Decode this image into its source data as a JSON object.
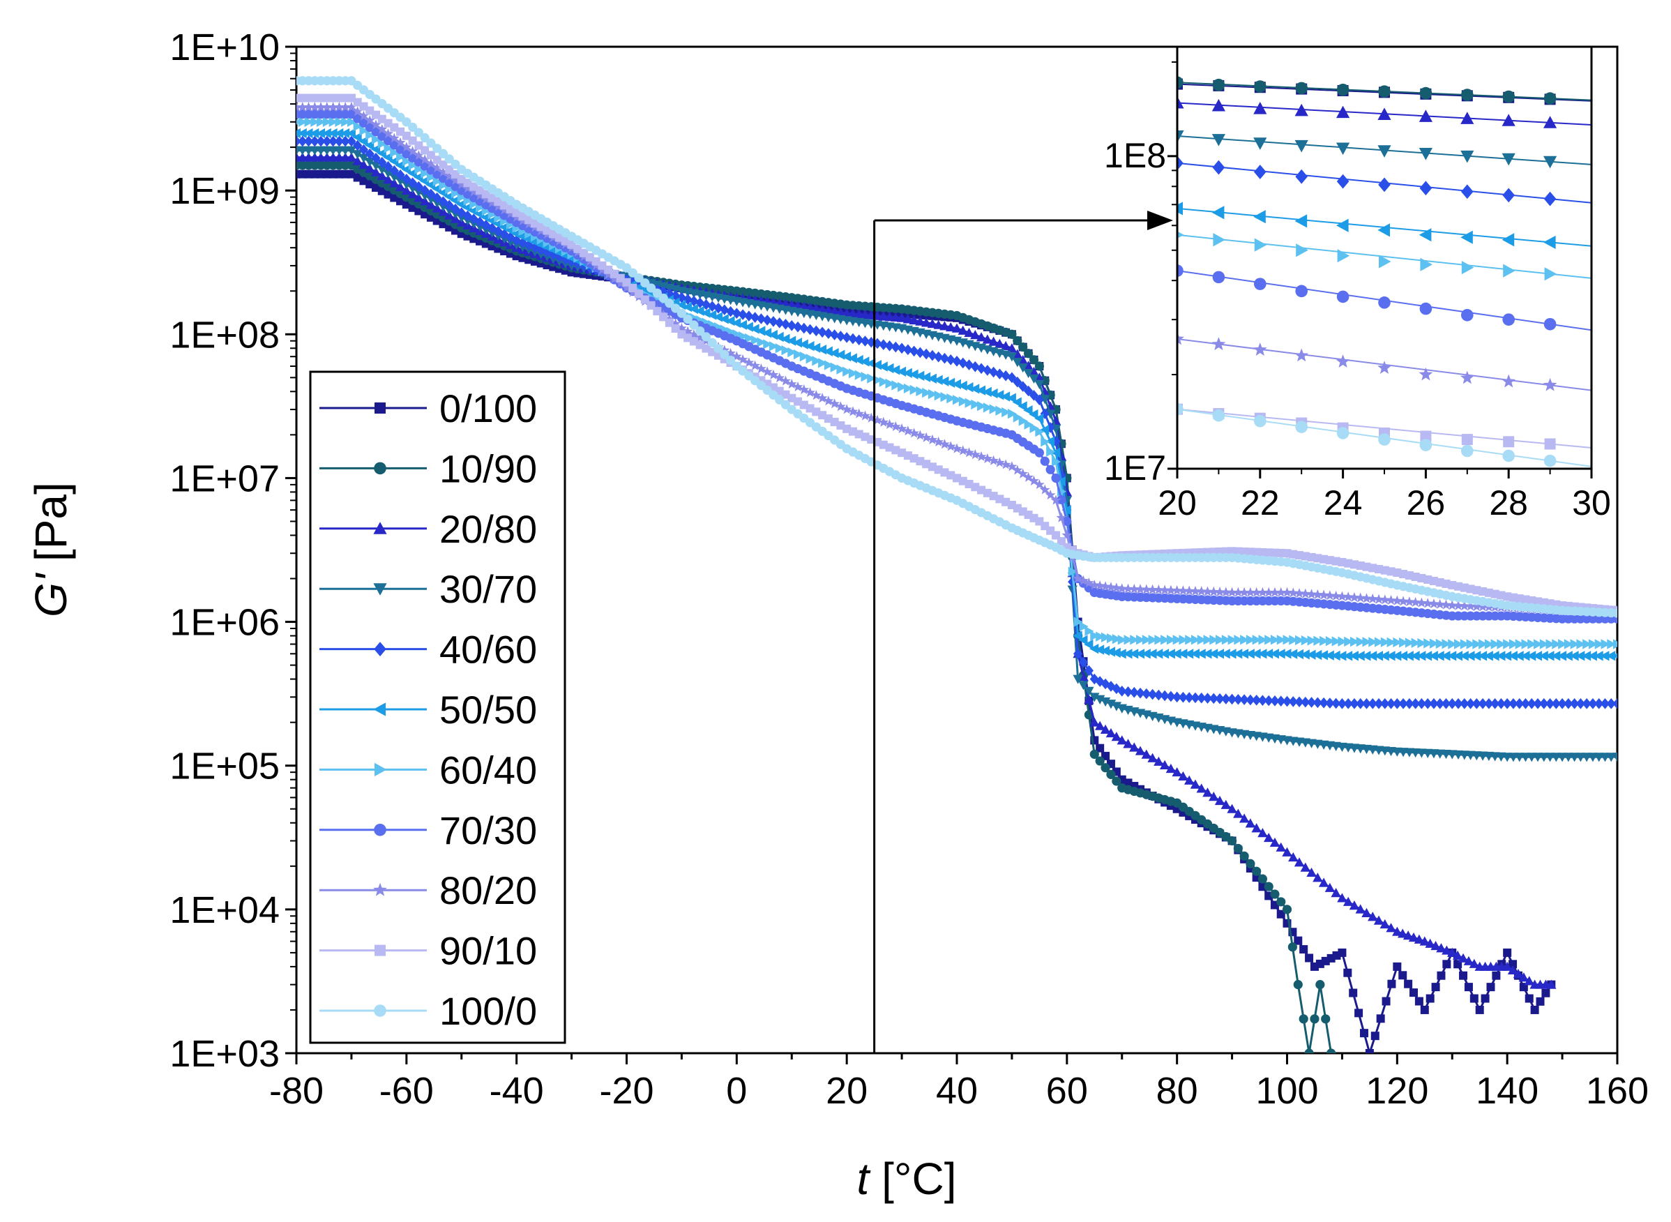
{
  "chart_data": {
    "type": "scatter",
    "title": "",
    "xlabel": {
      "italic": "t",
      "unit": "[°C]"
    },
    "ylabel": {
      "italic": "G'",
      "unit": "[Pa]"
    },
    "xlim": [
      -80,
      160
    ],
    "ylim_log10": [
      3,
      10
    ],
    "xticks": [
      "-80",
      "-60",
      "-40",
      "-20",
      "0",
      "20",
      "40",
      "60",
      "80",
      "100",
      "120",
      "140",
      "160"
    ],
    "yticks": [
      "1E+03",
      "1E+04",
      "1E+05",
      "1E+06",
      "1E+07",
      "1E+08",
      "1E+09",
      "1E+10"
    ],
    "legend_position": "left",
    "annotation": {
      "type": "arrow",
      "from_x": 25,
      "to": "inset",
      "text": ""
    },
    "series": [
      {
        "name": "0/100",
        "color": "#1a1a8c",
        "marker": "square",
        "x": [
          -80,
          -70,
          -60,
          -50,
          -40,
          -30,
          -20,
          -10,
          0,
          10,
          20,
          30,
          40,
          50,
          55,
          58,
          60,
          62,
          65,
          70,
          80,
          90,
          100,
          105,
          110,
          115,
          120,
          125,
          130,
          135,
          140,
          145,
          148
        ],
        "y": [
          1300000000.0,
          1300000000.0,
          800000000.0,
          500000000.0,
          350000000.0,
          270000000.0,
          240000000.0,
          210000000.0,
          190000000.0,
          170000000.0,
          150000000.0,
          140000000.0,
          130000000.0,
          100000000.0,
          60000000.0,
          30000000.0,
          10000000.0,
          1000000.0,
          150000.0,
          80000.0,
          50000.0,
          30000.0,
          8000.0,
          4000.0,
          5000.0,
          1000.0,
          4000.0,
          2000.0,
          5000.0,
          2000.0,
          5000.0,
          2000.0,
          3000.0
        ]
      },
      {
        "name": "10/90",
        "color": "#145c6e",
        "marker": "circle",
        "x": [
          -80,
          -70,
          -60,
          -50,
          -40,
          -30,
          -20,
          -10,
          0,
          10,
          20,
          30,
          40,
          50,
          55,
          58,
          60,
          62,
          65,
          70,
          80,
          90,
          100,
          102,
          104,
          106,
          108
        ],
        "y": [
          1500000000.0,
          1500000000.0,
          900000000.0,
          550000000.0,
          380000000.0,
          290000000.0,
          250000000.0,
          220000000.0,
          200000000.0,
          180000000.0,
          160000000.0,
          150000000.0,
          135000000.0,
          100000000.0,
          60000000.0,
          30000000.0,
          10000000.0,
          800000.0,
          120000.0,
          70000.0,
          55000.0,
          30000.0,
          10000.0,
          3000.0,
          1000.0,
          3000.0,
          1000.0
        ]
      },
      {
        "name": "20/80",
        "color": "#2828c8",
        "marker": "triangle-up",
        "x": [
          -80,
          -70,
          -60,
          -50,
          -40,
          -30,
          -20,
          -10,
          0,
          10,
          20,
          30,
          40,
          50,
          55,
          58,
          60,
          62,
          65,
          70,
          80,
          90,
          100,
          110,
          120,
          125,
          130,
          135,
          140,
          145,
          148
        ],
        "y": [
          1700000000.0,
          1700000000.0,
          1000000000.0,
          600000000.0,
          400000000.0,
          300000000.0,
          250000000.0,
          210000000.0,
          180000000.0,
          160000000.0,
          140000000.0,
          130000000.0,
          110000000.0,
          80000000.0,
          50000000.0,
          25000000.0,
          8000000.0,
          600000.0,
          200000.0,
          150000.0,
          90000.0,
          50000.0,
          25000.0,
          12000.0,
          7000.0,
          6000.0,
          5000.0,
          4000.0,
          4000.0,
          3000.0,
          3000.0
        ]
      },
      {
        "name": "30/70",
        "color": "#1c6f96",
        "marker": "triangle-down",
        "x": [
          -80,
          -70,
          -60,
          -50,
          -40,
          -30,
          -20,
          -10,
          0,
          10,
          20,
          30,
          40,
          50,
          55,
          58,
          60,
          62,
          65,
          70,
          80,
          90,
          100,
          110,
          120,
          130,
          140,
          150,
          160
        ],
        "y": [
          1900000000.0,
          1900000000.0,
          1100000000.0,
          650000000.0,
          420000000.0,
          300000000.0,
          250000000.0,
          200000000.0,
          170000000.0,
          145000000.0,
          125000000.0,
          110000000.0,
          90000000.0,
          70000000.0,
          45000000.0,
          22000000.0,
          7000000.0,
          400000.0,
          300000.0,
          250000.0,
          200000.0,
          170000.0,
          150000.0,
          135000.0,
          125000.0,
          120000.0,
          115000.0,
          115000.0,
          115000.0
        ]
      },
      {
        "name": "40/60",
        "color": "#2a4fe8",
        "marker": "diamond",
        "x": [
          -80,
          -70,
          -60,
          -50,
          -40,
          -30,
          -20,
          -10,
          0,
          10,
          20,
          30,
          40,
          50,
          55,
          58,
          60,
          62,
          65,
          70,
          80,
          90,
          100,
          110,
          120,
          130,
          140,
          150,
          160
        ],
        "y": [
          2200000000.0,
          2200000000.0,
          1200000000.0,
          700000000.0,
          450000000.0,
          320000000.0,
          240000000.0,
          180000000.0,
          140000000.0,
          115000000.0,
          95000000.0,
          80000000.0,
          65000000.0,
          50000000.0,
          35000000.0,
          18000000.0,
          6000000.0,
          600000.0,
          400000.0,
          330000.0,
          300000.0,
          290000.0,
          280000.0,
          270000.0,
          270000.0,
          270000.0,
          270000.0,
          270000.0,
          270000.0
        ]
      },
      {
        "name": "50/50",
        "color": "#1c9be6",
        "marker": "triangle-left",
        "x": [
          -80,
          -70,
          -60,
          -50,
          -40,
          -30,
          -20,
          -10,
          0,
          10,
          20,
          30,
          40,
          50,
          55,
          58,
          60,
          62,
          65,
          70,
          80,
          90,
          100,
          110,
          120,
          130,
          140,
          150,
          160
        ],
        "y": [
          2500000000.0,
          2500000000.0,
          1400000000.0,
          800000000.0,
          500000000.0,
          340000000.0,
          230000000.0,
          160000000.0,
          120000000.0,
          90000000.0,
          70000000.0,
          55000000.0,
          45000000.0,
          36000000.0,
          26000000.0,
          15000000.0,
          6000000.0,
          800000.0,
          650000.0,
          600000.0,
          600000.0,
          600000.0,
          600000.0,
          580000.0,
          580000.0,
          580000.0,
          580000.0,
          580000.0,
          580000.0
        ]
      },
      {
        "name": "60/40",
        "color": "#5cc0f0",
        "marker": "triangle-right",
        "x": [
          -80,
          -70,
          -60,
          -50,
          -40,
          -30,
          -20,
          -10,
          0,
          10,
          20,
          30,
          40,
          50,
          55,
          58,
          60,
          62,
          65,
          70,
          80,
          90,
          100,
          110,
          120,
          130,
          140,
          150,
          160
        ],
        "y": [
          3000000000.0,
          3000000000.0,
          1600000000.0,
          900000000.0,
          550000000.0,
          360000000.0,
          220000000.0,
          140000000.0,
          100000000.0,
          75000000.0,
          55000000.0,
          43000000.0,
          35000000.0,
          28000000.0,
          21000000.0,
          13000000.0,
          5000000.0,
          1000000.0,
          800000.0,
          750000.0,
          750000.0,
          750000.0,
          750000.0,
          730000.0,
          720000.0,
          700000.0,
          700000.0,
          700000.0,
          700000.0
        ]
      },
      {
        "name": "70/30",
        "color": "#5a6ef0",
        "marker": "circle",
        "x": [
          -80,
          -70,
          -60,
          -50,
          -40,
          -30,
          -20,
          -10,
          0,
          10,
          20,
          30,
          40,
          50,
          55,
          58,
          60,
          62,
          65,
          70,
          80,
          90,
          100,
          110,
          120,
          130,
          140,
          150,
          160
        ],
        "y": [
          3400000000.0,
          3400000000.0,
          1800000000.0,
          1000000000.0,
          600000000.0,
          380000000.0,
          210000000.0,
          130000000.0,
          90000000.0,
          60000000.0,
          42000000.0,
          32000000.0,
          25000000.0,
          20000000.0,
          15000000.0,
          10000000.0,
          5000000.0,
          2000000.0,
          1600000.0,
          1500000.0,
          1450000.0,
          1400000.0,
          1400000.0,
          1300000.0,
          1200000.0,
          1100000.0,
          1100000.0,
          1050000.0,
          1050000.0
        ]
      },
      {
        "name": "80/20",
        "color": "#8a8ae8",
        "marker": "star",
        "x": [
          -80,
          -70,
          -60,
          -50,
          -40,
          -30,
          -20,
          -10,
          0,
          10,
          20,
          30,
          40,
          50,
          55,
          58,
          60,
          62,
          65,
          70,
          80,
          90,
          100,
          110,
          120,
          130,
          140,
          150,
          160
        ],
        "y": [
          3800000000.0,
          3800000000.0,
          2000000000.0,
          1100000000.0,
          650000000.0,
          400000000.0,
          210000000.0,
          110000000.0,
          70000000.0,
          45000000.0,
          30000000.0,
          22000000.0,
          16000000.0,
          12000000.0,
          9000000.0,
          7000000.0,
          4000000.0,
          2000000.0,
          1800000.0,
          1700000.0,
          1650000.0,
          1600000.0,
          1600000.0,
          1500000.0,
          1400000.0,
          1300000.0,
          1250000.0,
          1200000.0,
          1200000.0
        ]
      },
      {
        "name": "90/10",
        "color": "#b8b8f2",
        "marker": "square",
        "x": [
          -80,
          -70,
          -60,
          -50,
          -40,
          -30,
          -20,
          -10,
          0,
          10,
          20,
          30,
          40,
          50,
          55,
          58,
          60,
          62,
          65,
          70,
          80,
          90,
          100,
          110,
          120,
          130,
          140,
          150,
          160
        ],
        "y": [
          4400000000.0,
          4400000000.0,
          2400000000.0,
          1200000000.0,
          700000000.0,
          420000000.0,
          230000000.0,
          100000000.0,
          60000000.0,
          36000000.0,
          22000000.0,
          15000000.0,
          10000000.0,
          6500000.0,
          5000000.0,
          4000000.0,
          3300000.0,
          3000000.0,
          2800000.0,
          2900000.0,
          3000000.0,
          3100000.0,
          3000000.0,
          2600000.0,
          2200000.0,
          1800000.0,
          1500000.0,
          1300000.0,
          1200000.0
        ]
      },
      {
        "name": "100/0",
        "color": "#a8dcf6",
        "marker": "circle",
        "x": [
          -80,
          -70,
          -60,
          -50,
          -40,
          -30,
          -20,
          -10,
          0,
          10,
          20,
          30,
          40,
          50,
          55,
          58,
          60,
          62,
          65,
          70,
          80,
          90,
          100,
          110,
          120,
          130,
          140,
          150,
          160
        ],
        "y": [
          5800000000.0,
          5800000000.0,
          3000000000.0,
          1400000000.0,
          800000000.0,
          480000000.0,
          290000000.0,
          140000000.0,
          60000000.0,
          30000000.0,
          16000000.0,
          10000000.0,
          7000000.0,
          4500000.0,
          3700000.0,
          3300000.0,
          3000000.0,
          2900000.0,
          2800000.0,
          2800000.0,
          2800000.0,
          2800000.0,
          2600000.0,
          2200000.0,
          1800000.0,
          1500000.0,
          1300000.0,
          1200000.0,
          1150000.0
        ]
      }
    ],
    "inset": {
      "xlim": [
        20,
        30
      ],
      "ylim_log10": [
        7,
        8.35
      ],
      "xticks": [
        "20",
        "22",
        "24",
        "26",
        "28",
        "30"
      ],
      "yticks": [
        "1E7",
        "1E8"
      ],
      "x": [
        20,
        21,
        22,
        23,
        24,
        25,
        26,
        27,
        28,
        29
      ],
      "values": {
        "0/100": [
          170000000.0,
          168000000.0,
          166000000.0,
          164000000.0,
          162000000.0,
          160000000.0,
          158000000.0,
          156000000.0,
          154000000.0,
          152000000.0
        ],
        "10/90": [
          172000000.0,
          169000000.0,
          167000000.0,
          165000000.0,
          163000000.0,
          161000000.0,
          159000000.0,
          157000000.0,
          155000000.0,
          153000000.0
        ],
        "20/80": [
          148000000.0,
          145000000.0,
          142000000.0,
          140000000.0,
          138000000.0,
          136000000.0,
          134000000.0,
          132000000.0,
          130000000.0,
          128000000.0
        ],
        "30/70": [
          116000000.0,
          113000000.0,
          110000000.0,
          108000000.0,
          106000000.0,
          104000000.0,
          102000000.0,
          100000000.0,
          98000000.0,
          96000000.0
        ],
        "40/60": [
          95000000.0,
          92000000.0,
          89000000.0,
          86000000.0,
          83000000.0,
          81000000.0,
          79000000.0,
          77000000.0,
          75000000.0,
          73000000.0
        ],
        "50/50": [
          68000000.0,
          66000000.0,
          64000000.0,
          62000000.0,
          60000000.0,
          58000000.0,
          56000000.0,
          55000000.0,
          54000000.0,
          53000000.0
        ],
        "60/40": [
          56000000.0,
          54000000.0,
          52000000.0,
          50000000.0,
          48000000.0,
          46000000.0,
          45000000.0,
          44000000.0,
          43000000.0,
          42000000.0
        ],
        "70/30": [
          43000000.0,
          41000000.0,
          39000000.0,
          37000000.0,
          35500000.0,
          34000000.0,
          32500000.0,
          31000000.0,
          30000000.0,
          29000000.0
        ],
        "80/20": [
          26000000.0,
          25000000.0,
          24000000.0,
          23000000.0,
          22000000.0,
          21000000.0,
          20000000.0,
          19500000.0,
          19000000.0,
          18500000.0
        ],
        "90/10": [
          15500000.0,
          15000000.0,
          14500000.0,
          14000000.0,
          13500000.0,
          13000000.0,
          12700000.0,
          12400000.0,
          12200000.0,
          12000000.0
        ],
        "100/0": [
          15500000.0,
          14800000.0,
          14200000.0,
          13600000.0,
          13000000.0,
          12400000.0,
          11900000.0,
          11400000.0,
          11000000.0,
          10600000.0
        ]
      }
    }
  }
}
